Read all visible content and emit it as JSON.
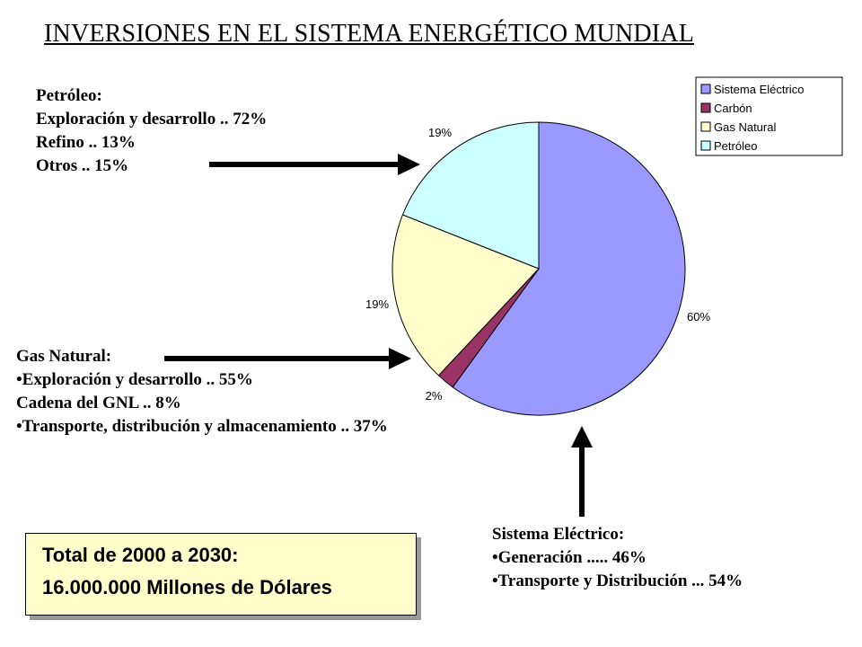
{
  "title": "INVERSIONES EN EL SISTEMA ENERGÉTICO MUNDIAL",
  "petroleo": {
    "heading": "Petróleo:",
    "lines": [
      "Exploración y desarrollo .. 72%",
      "Refino .. 13%",
      "Otros .. 15%"
    ]
  },
  "gas_natural": {
    "heading": "Gas Natural:",
    "lines": [
      "Exploración y desarrollo .. 55%",
      "Cadena del GNL .. 8%",
      "Transporte, distribución y almacenamiento .. 37%"
    ]
  },
  "sistema_electrico": {
    "heading": "Sistema Eléctrico:",
    "lines": [
      "Generación ..... 46%",
      "Transporte y Distribución ... 54%"
    ]
  },
  "total": {
    "label": "Total de 2000 a 2030:",
    "value": "16.000.000 Millones de Dólares"
  },
  "colors": {
    "sistema_electrico": "#9999ff",
    "carbon": "#993366",
    "gas_natural": "#ffffcc",
    "petroleo": "#ccffff",
    "arrow": "#000000",
    "total_box": "#ffffcc"
  },
  "chart_data": {
    "type": "pie",
    "categories": [
      "Sistema Eléctrico",
      "Carbón",
      "Gas Natural",
      "Petróleo"
    ],
    "values": [
      60,
      2,
      19,
      19
    ],
    "data_labels": [
      "60%",
      "2%",
      "19%",
      "19%"
    ],
    "legend_position": "top-right",
    "start_angle": "12 o'clock",
    "direction": "clockwise"
  }
}
